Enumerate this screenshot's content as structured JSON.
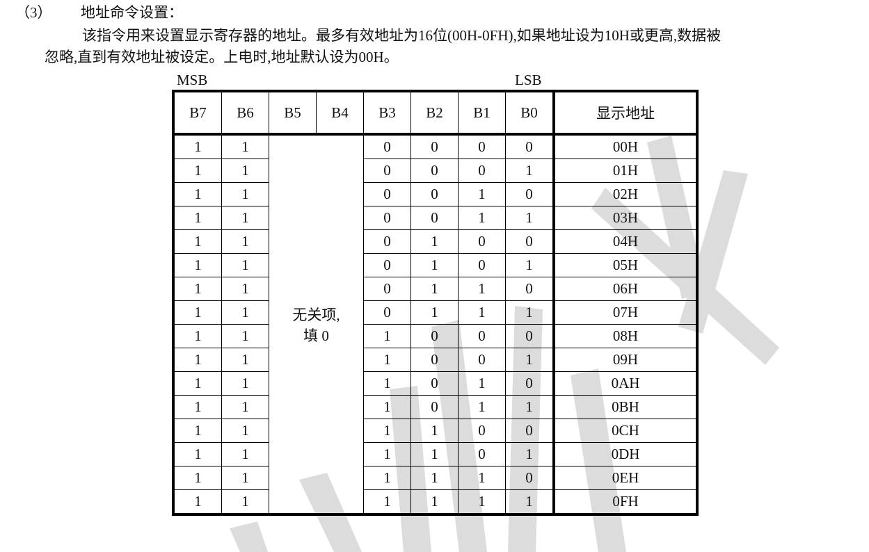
{
  "section": {
    "number": "（3）",
    "title": "地址命令设置：",
    "paragraph_line1": "该指令用来设置显示寄存器的地址。最多有效地址为16位(00H-0FH),如果地址设为10H或更高,数据被",
    "paragraph_line2": "忽略,直到有效地址被设定。上电时,地址默认设为00H。"
  },
  "table": {
    "msb_label": "MSB",
    "lsb_label": "LSB",
    "headers": [
      "B7",
      "B6",
      "B5",
      "B4",
      "B3",
      "B2",
      "B1",
      "B0",
      "显示地址"
    ],
    "dont_care_line1": "无关项,",
    "dont_care_line2": "填 0",
    "rows": [
      {
        "b7": "1",
        "b6": "1",
        "b3": "0",
        "b2": "0",
        "b1": "0",
        "b0": "0",
        "addr": "00H"
      },
      {
        "b7": "1",
        "b6": "1",
        "b3": "0",
        "b2": "0",
        "b1": "0",
        "b0": "1",
        "addr": "01H"
      },
      {
        "b7": "1",
        "b6": "1",
        "b3": "0",
        "b2": "0",
        "b1": "1",
        "b0": "0",
        "addr": "02H"
      },
      {
        "b7": "1",
        "b6": "1",
        "b3": "0",
        "b2": "0",
        "b1": "1",
        "b0": "1",
        "addr": "03H"
      },
      {
        "b7": "1",
        "b6": "1",
        "b3": "0",
        "b2": "1",
        "b1": "0",
        "b0": "0",
        "addr": "04H"
      },
      {
        "b7": "1",
        "b6": "1",
        "b3": "0",
        "b2": "1",
        "b1": "0",
        "b0": "1",
        "addr": "05H"
      },
      {
        "b7": "1",
        "b6": "1",
        "b3": "0",
        "b2": "1",
        "b1": "1",
        "b0": "0",
        "addr": "06H"
      },
      {
        "b7": "1",
        "b6": "1",
        "b3": "0",
        "b2": "1",
        "b1": "1",
        "b0": "1",
        "addr": "07H"
      },
      {
        "b7": "1",
        "b6": "1",
        "b3": "1",
        "b2": "0",
        "b1": "0",
        "b0": "0",
        "addr": "08H"
      },
      {
        "b7": "1",
        "b6": "1",
        "b3": "1",
        "b2": "0",
        "b1": "0",
        "b0": "1",
        "addr": "09H"
      },
      {
        "b7": "1",
        "b6": "1",
        "b3": "1",
        "b2": "0",
        "b1": "1",
        "b0": "0",
        "addr": "0AH"
      },
      {
        "b7": "1",
        "b6": "1",
        "b3": "1",
        "b2": "0",
        "b1": "1",
        "b0": "1",
        "addr": "0BH"
      },
      {
        "b7": "1",
        "b6": "1",
        "b3": "1",
        "b2": "1",
        "b1": "0",
        "b0": "0",
        "addr": "0CH"
      },
      {
        "b7": "1",
        "b6": "1",
        "b3": "1",
        "b2": "1",
        "b1": "0",
        "b0": "1",
        "addr": "0DH"
      },
      {
        "b7": "1",
        "b6": "1",
        "b3": "1",
        "b2": "1",
        "b1": "1",
        "b0": "0",
        "addr": "0EH"
      },
      {
        "b7": "1",
        "b6": "1",
        "b3": "1",
        "b2": "1",
        "b1": "1",
        "b0": "1",
        "addr": "0FH"
      }
    ]
  },
  "watermark_color": "#d8d8d8"
}
